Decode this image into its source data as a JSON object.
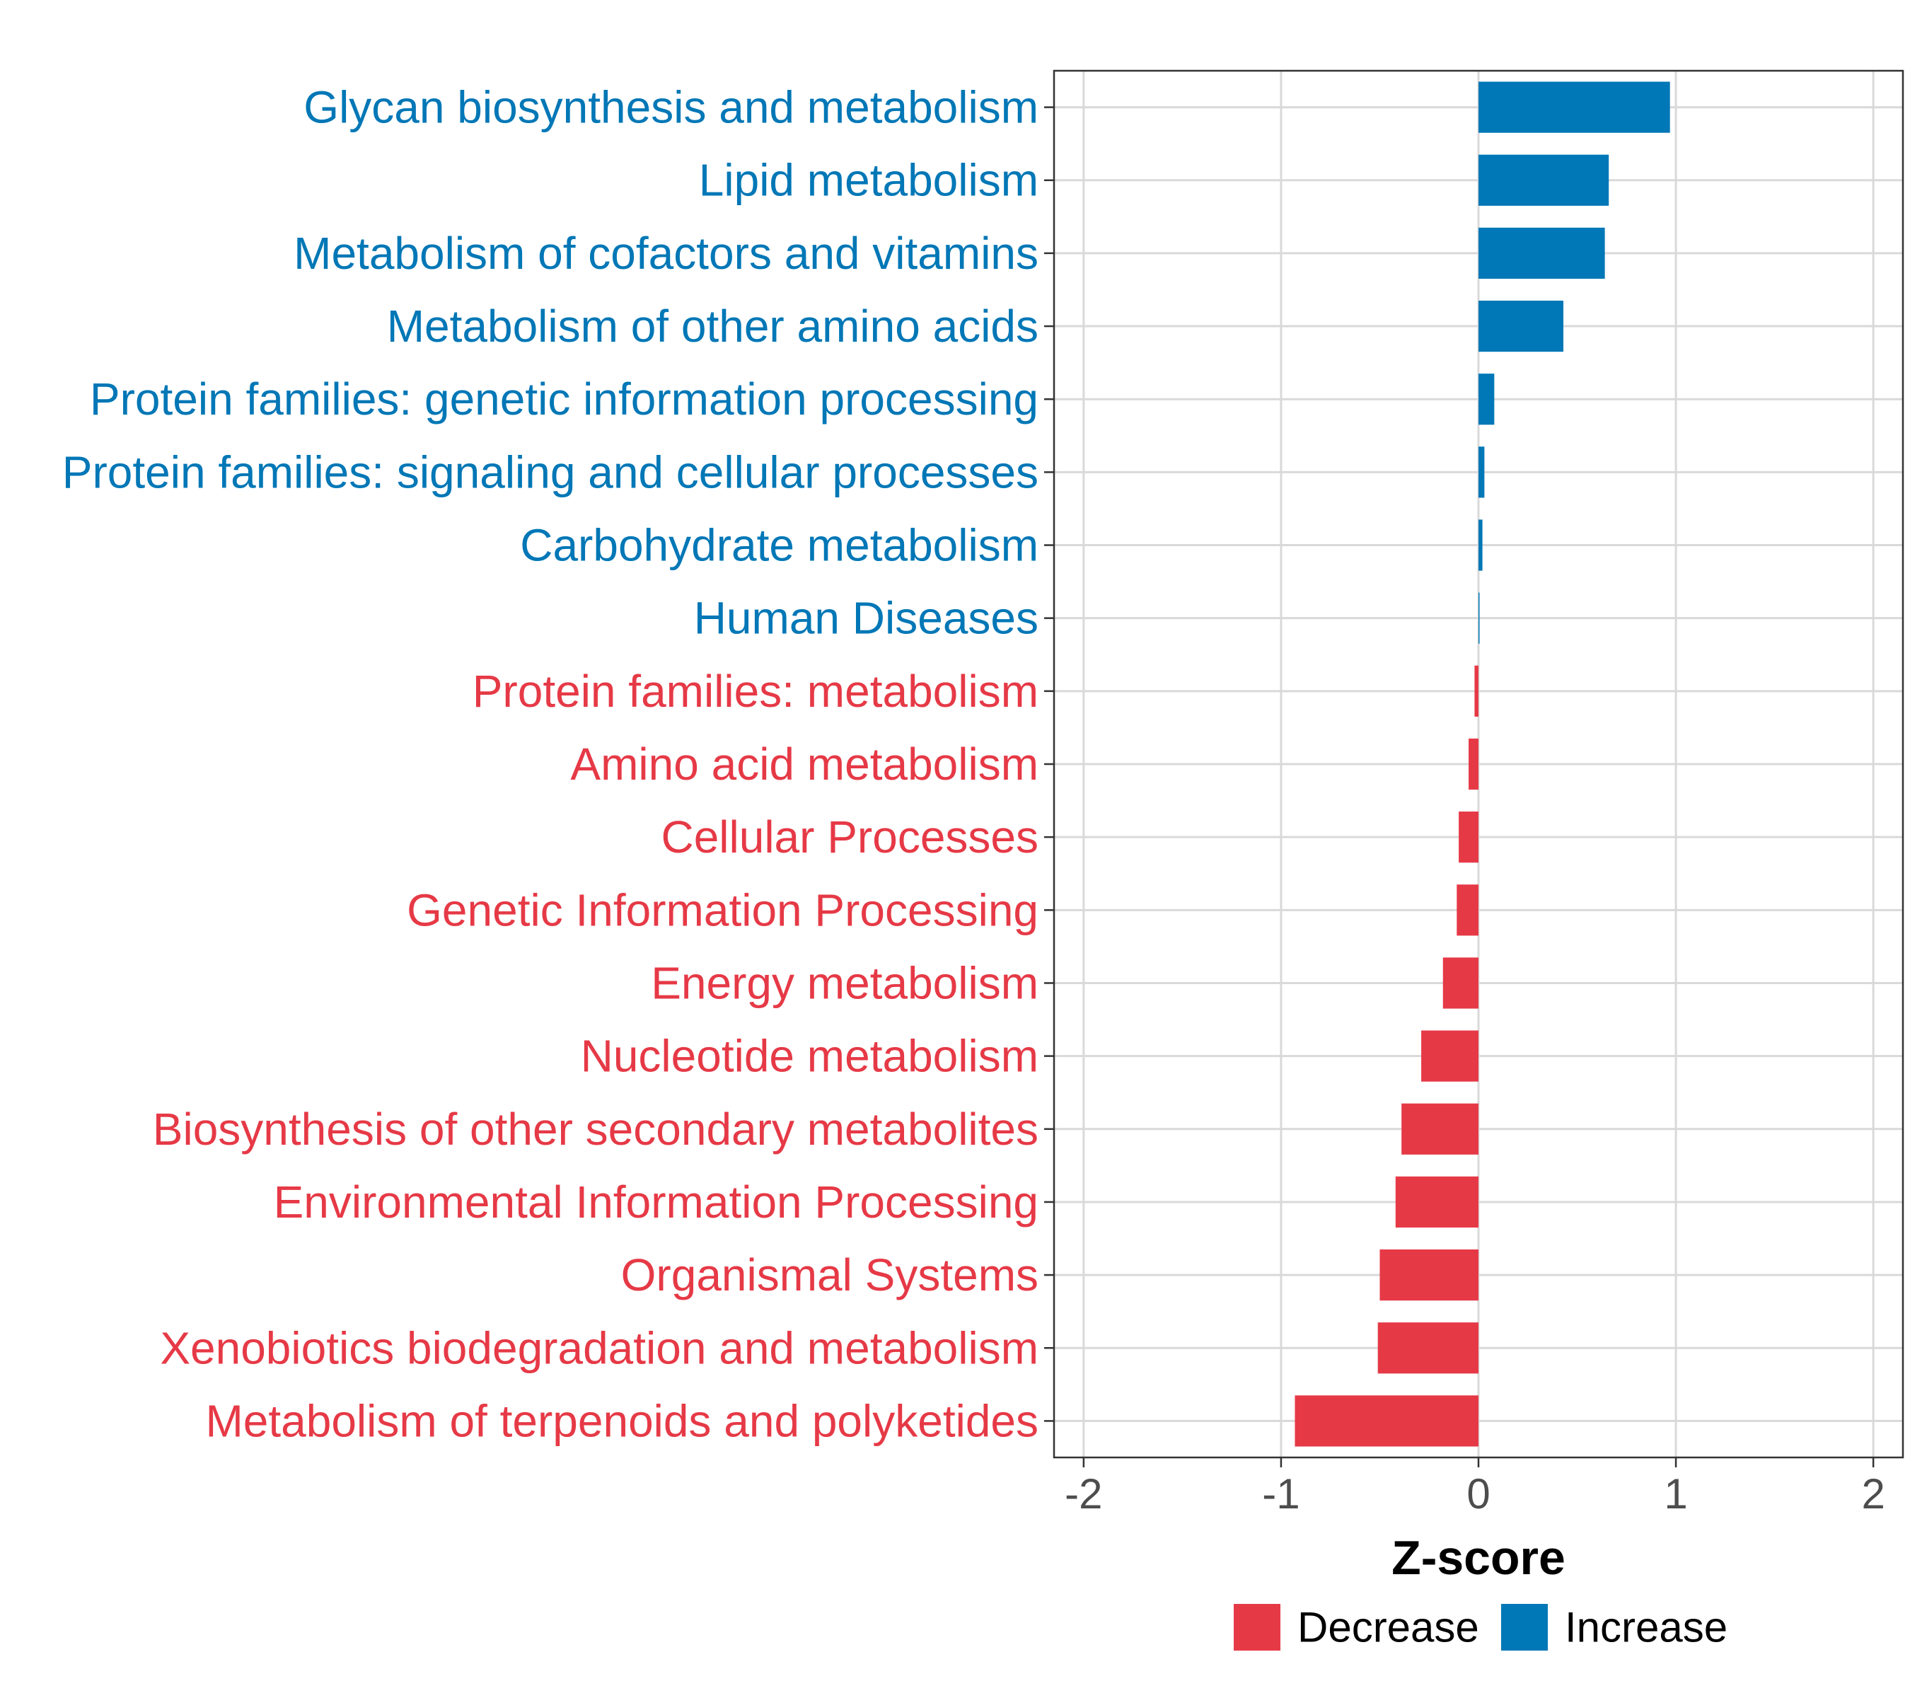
{
  "chart_data": {
    "type": "bar",
    "orientation": "horizontal",
    "title": "",
    "xlabel": "Z-score",
    "ylabel": "",
    "xlim": [
      -2.15,
      2.15
    ],
    "xticks": [
      -2,
      -1,
      0,
      1,
      2
    ],
    "xtick_labels": [
      "-2",
      "-1",
      "0",
      "1",
      "2"
    ],
    "grid": true,
    "legend_position": "bottom",
    "colors": {
      "Decrease": "#E63946",
      "Increase": "#0077B6"
    },
    "legend": [
      {
        "label": "Decrease",
        "color": "#E63946"
      },
      {
        "label": "Increase",
        "color": "#0077B6"
      }
    ],
    "categories": [
      "Glycan biosynthesis and metabolism",
      "Lipid metabolism",
      "Metabolism of cofactors and vitamins",
      "Metabolism of other amino acids",
      "Protein families: genetic information processing",
      "Protein families: signaling and cellular processes",
      "Carbohydrate metabolism",
      "Human Diseases",
      "Protein families: metabolism",
      "Amino acid metabolism",
      "Cellular Processes",
      "Genetic Information Processing",
      "Energy metabolism",
      "Nucleotide metabolism",
      "Biosynthesis of other secondary metabolites",
      "Environmental Information Processing",
      "Organismal Systems",
      "Xenobiotics biodegradation and metabolism",
      "Metabolism of terpenoids and polyketides"
    ],
    "values": [
      0.97,
      0.66,
      0.64,
      0.43,
      0.08,
      0.03,
      0.02,
      0.005,
      -0.02,
      -0.05,
      -0.1,
      -0.11,
      -0.18,
      -0.29,
      -0.39,
      -0.42,
      -0.5,
      -0.51,
      -0.93
    ],
    "groups": [
      "Increase",
      "Increase",
      "Increase",
      "Increase",
      "Increase",
      "Increase",
      "Increase",
      "Increase",
      "Decrease",
      "Decrease",
      "Decrease",
      "Decrease",
      "Decrease",
      "Decrease",
      "Decrease",
      "Decrease",
      "Decrease",
      "Decrease",
      "Decrease"
    ]
  }
}
